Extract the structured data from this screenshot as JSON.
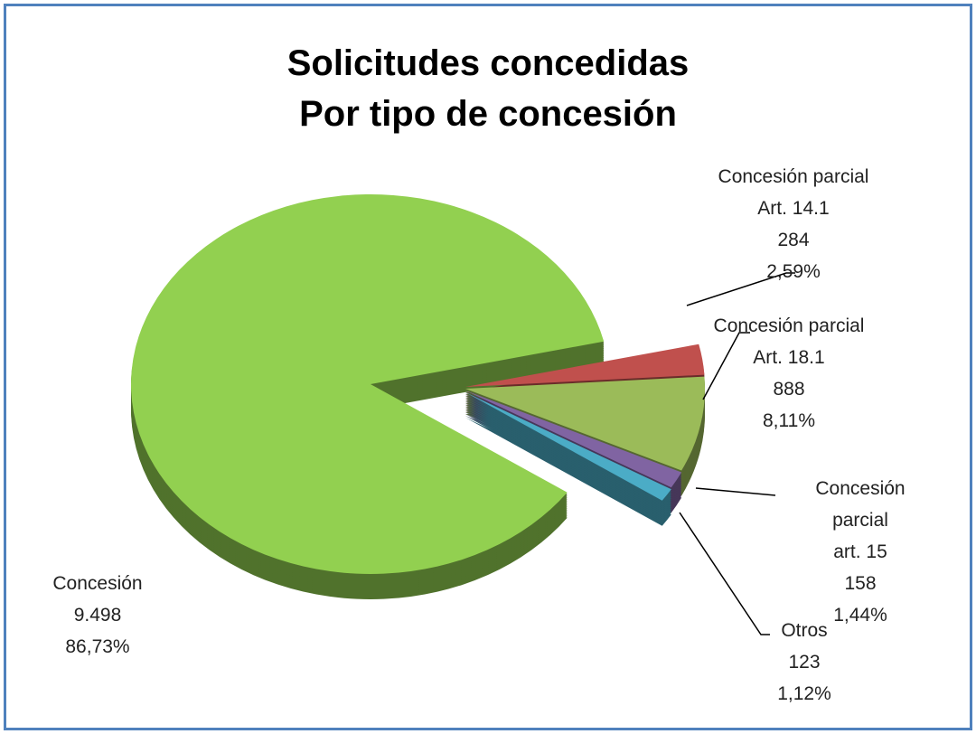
{
  "chart_data": {
    "type": "pie",
    "title": "Solicitudes concedidas",
    "subtitle": "Por tipo de concesión",
    "categories": [
      "Concesión parcial\nArt. 14.1",
      "Concesión parcial\nArt. 18.1",
      "Concesión parcial\nart. 15",
      "Otros",
      "Concesión"
    ],
    "values": [
      284,
      888,
      158,
      123,
      9498
    ],
    "value_labels": [
      "284",
      "888",
      "158",
      "123",
      "9.498"
    ],
    "percent_labels": [
      "2,59%",
      "8,11%",
      "1,44%",
      "1,12%",
      "86,73%"
    ],
    "colors": [
      "#c0504d",
      "#9bbb59",
      "#8064a2",
      "#4bacc6",
      "#92d050"
    ]
  }
}
